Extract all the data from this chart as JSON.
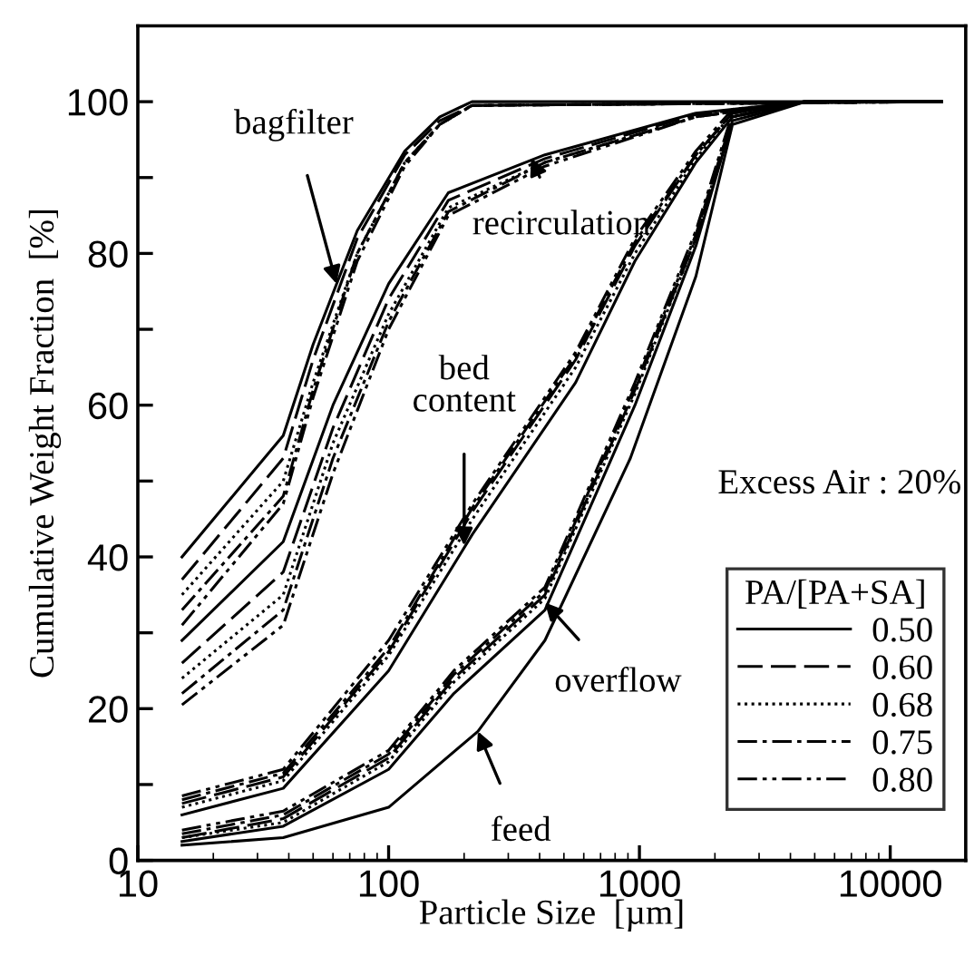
{
  "chart_data": {
    "type": "line",
    "xlabel": "Particle Size  [µm]",
    "ylabel": "Cumulative Weight Fraction  [%]",
    "legend_title": "PA/[PA+SA]",
    "log": "x",
    "xlim": [
      10,
      20000
    ],
    "xticks": [
      10,
      100,
      1000,
      10000
    ],
    "ylim": [
      0,
      110
    ],
    "yticks": [
      0,
      {
        "value": 10,
        "label": null
      },
      20,
      {
        "value": 30,
        "label": null
      },
      40,
      {
        "value": 50,
        "label": null
      },
      60,
      {
        "value": 70,
        "label": null
      },
      80,
      {
        "value": 90,
        "label": null
      },
      100
    ],
    "grid": false,
    "legend": "right",
    "marker": "none",
    "series": [
      {
        "name": "0.50",
        "color": "#000000",
        "line_style": "solid",
        "x": [
          15,
          38,
          50,
          75,
          116,
          160,
          215,
          16000
        ],
        "values": [
          40,
          56,
          68,
          83,
          93.5,
          98,
          100,
          100
        ]
      },
      {
        "name": "0.60",
        "color": "#000000",
        "line_style": "dashed",
        "x": [
          15,
          38,
          50,
          75,
          116,
          160,
          215,
          16000
        ],
        "values": [
          37,
          53,
          66,
          82,
          93,
          97.5,
          99.5,
          100
        ]
      },
      {
        "name": "0.68",
        "color": "#000000",
        "line_style": "dotted",
        "x": [
          15,
          38,
          50,
          75,
          116,
          160,
          215,
          16000
        ],
        "values": [
          35,
          50,
          63,
          80,
          92,
          97,
          99.5,
          100
        ]
      },
      {
        "name": "0.75",
        "color": "#000000",
        "line_style": "dashdot",
        "x": [
          15,
          38,
          50,
          75,
          116,
          160,
          215,
          16000
        ],
        "values": [
          33,
          48,
          62,
          80,
          92,
          97,
          99.5,
          100
        ]
      },
      {
        "name": "0.80",
        "color": "#000000",
        "line_style": "dashdotdot",
        "x": [
          15,
          38,
          50,
          75,
          116,
          160,
          215,
          16000
        ],
        "values": [
          31,
          47,
          61,
          79,
          91.5,
          97,
          99.5,
          100
        ]
      },
      {
        "color": "#000000",
        "line_style": "solid",
        "x": [
          15,
          38,
          60,
          100,
          173,
          420,
          1680,
          4600,
          16000
        ],
        "values": [
          29,
          42,
          60,
          76,
          88,
          93,
          98.5,
          100,
          100
        ]
      },
      {
        "color": "#000000",
        "line_style": "dashed",
        "x": [
          15,
          38,
          60,
          100,
          173,
          420,
          1680,
          4600,
          16000
        ],
        "values": [
          26,
          38,
          57,
          74,
          87,
          92.5,
          98.3,
          100,
          100
        ]
      },
      {
        "color": "#000000",
        "line_style": "dotted",
        "x": [
          15,
          38,
          60,
          100,
          173,
          420,
          1680,
          4600,
          16000
        ],
        "values": [
          24,
          35,
          55,
          72,
          86,
          92,
          98,
          100,
          100
        ]
      },
      {
        "color": "#000000",
        "line_style": "dashdot",
        "x": [
          15,
          38,
          60,
          100,
          173,
          420,
          1680,
          4600,
          16000
        ],
        "values": [
          22,
          33,
          53,
          71,
          85.5,
          92,
          98,
          100,
          100
        ]
      },
      {
        "color": "#000000",
        "line_style": "dashdotdot",
        "x": [
          15,
          38,
          60,
          100,
          173,
          420,
          1680,
          4600,
          16000
        ],
        "values": [
          20.5,
          31,
          51,
          70,
          85,
          91.5,
          98,
          100,
          100
        ]
      },
      {
        "color": "#000000",
        "line_style": "solid",
        "x": [
          15,
          38,
          100,
          216,
          557,
          960,
          1680,
          2350,
          4600,
          16000
        ],
        "values": [
          6,
          9.5,
          25,
          43,
          63,
          79,
          92,
          98,
          100,
          100
        ]
      },
      {
        "color": "#000000",
        "line_style": "dashed",
        "x": [
          15,
          38,
          100,
          216,
          557,
          960,
          1680,
          2350,
          4600,
          16000
        ],
        "values": [
          7.5,
          11,
          27.5,
          46,
          66,
          81,
          93,
          98.5,
          100,
          100
        ]
      },
      {
        "color": "#000000",
        "line_style": "dotted",
        "x": [
          15,
          38,
          100,
          216,
          557,
          960,
          1680,
          2350,
          4600,
          16000
        ],
        "values": [
          7,
          10.5,
          27,
          45,
          65,
          80,
          92.5,
          98.5,
          100,
          100
        ]
      },
      {
        "color": "#000000",
        "line_style": "dashdot",
        "x": [
          15,
          38,
          100,
          216,
          557,
          960,
          1680,
          2350,
          4600,
          16000
        ],
        "values": [
          8,
          11.5,
          28,
          46.5,
          66.5,
          81.5,
          93,
          98.5,
          100,
          100
        ]
      },
      {
        "color": "#000000",
        "line_style": "dashdotdot",
        "x": [
          15,
          38,
          100,
          216,
          557,
          960,
          1680,
          2350,
          4600,
          16000
        ],
        "values": [
          8.5,
          12,
          29,
          47,
          67,
          82,
          93.5,
          99,
          100,
          100
        ]
      },
      {
        "color": "#000000",
        "line_style": "solid",
        "x": [
          15,
          38,
          100,
          182,
          420,
          960,
          1680,
          2350,
          4600,
          16000
        ],
        "values": [
          2.5,
          4.5,
          12,
          22,
          33,
          60,
          81,
          97.5,
          100,
          100
        ]
      },
      {
        "color": "#000000",
        "line_style": "dashed",
        "x": [
          15,
          38,
          100,
          182,
          420,
          960,
          1680,
          2350,
          4600,
          16000
        ],
        "values": [
          3,
          5.5,
          13.5,
          24,
          35,
          62,
          82,
          98,
          100,
          100
        ]
      },
      {
        "color": "#000000",
        "line_style": "dotted",
        "x": [
          15,
          38,
          100,
          182,
          420,
          960,
          1680,
          2350,
          4600,
          16000
        ],
        "values": [
          3,
          5,
          13,
          23.5,
          34.5,
          61.5,
          82,
          98,
          100,
          100
        ]
      },
      {
        "color": "#000000",
        "line_style": "dashdot",
        "x": [
          15,
          38,
          100,
          182,
          420,
          960,
          1680,
          2350,
          4600,
          16000
        ],
        "values": [
          3.5,
          6,
          14,
          24.5,
          35.5,
          62.5,
          82.5,
          98,
          100,
          100
        ]
      },
      {
        "color": "#000000",
        "line_style": "dashdotdot",
        "x": [
          15,
          38,
          100,
          182,
          420,
          960,
          1680,
          2350,
          4600,
          16000
        ],
        "values": [
          4,
          6.5,
          14.5,
          25,
          36,
          63,
          83,
          98.5,
          100,
          100
        ]
      },
      {
        "color": "#000000",
        "line_style": "solid",
        "x": [
          15,
          38,
          100,
          227,
          420,
          920,
          1680,
          2350,
          4600,
          16000
        ],
        "values": [
          2,
          3,
          7,
          17,
          29,
          53,
          77,
          97,
          100,
          100
        ]
      }
    ],
    "annotations": [
      {
        "text": "bagfilter",
        "x": 62,
        "y": 76
      },
      {
        "text": "recirculation",
        "x": 370,
        "y": 92.6
      },
      {
        "text": "bed\ncontent",
        "x": 200,
        "y": 41.5
      },
      {
        "text": "overflow",
        "x": 420,
        "y": 34
      },
      {
        "text": "feed",
        "x": 227,
        "y": 17
      },
      "Excess Air : 20%"
    ]
  }
}
